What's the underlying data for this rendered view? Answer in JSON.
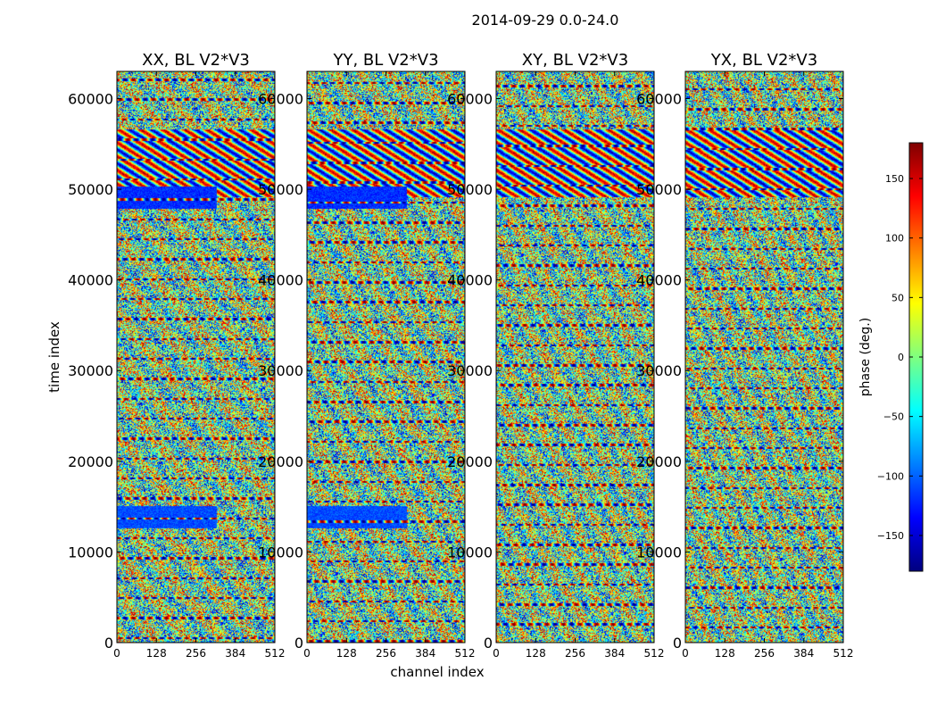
{
  "chart_data": {
    "type": "heatmap",
    "title": "2014-09-29 0.0-24.0",
    "xlabel": "channel index",
    "ylabel": "time index",
    "xlim": [
      0,
      512
    ],
    "ylim": [
      0,
      63000
    ],
    "xticks": [
      "0",
      "128",
      "256",
      "384",
      "512"
    ],
    "xtick_values": [
      0,
      128,
      256,
      384,
      512
    ],
    "yticks": [
      "0",
      "10000",
      "20000",
      "30000",
      "40000",
      "50000",
      "60000"
    ],
    "ytick_values": [
      0,
      10000,
      20000,
      30000,
      40000,
      50000,
      60000
    ],
    "panels": [
      {
        "title": "XX, BL V2*V3",
        "polarization": "XX"
      },
      {
        "title": "YY, BL V2*V3",
        "polarization": "YY"
      },
      {
        "title": "XY, BL V2*V3",
        "polarization": "XY"
      },
      {
        "title": "YX, BL V2*V3",
        "polarization": "YX"
      }
    ],
    "colorbar": {
      "label": "phase (deg.)",
      "range": [
        -180,
        180
      ],
      "ticks": [
        "150",
        "100",
        "50",
        "0",
        "−50",
        "−100",
        "−150"
      ],
      "tick_values": [
        150,
        100,
        50,
        0,
        -50,
        -100,
        -150
      ],
      "colormap": "jet"
    }
  },
  "colors": {
    "jet": [
      "#00007f",
      "#0000ff",
      "#007fff",
      "#00ffff",
      "#7fff7f",
      "#ffff00",
      "#ff7f00",
      "#ff0000",
      "#7f0000"
    ]
  }
}
